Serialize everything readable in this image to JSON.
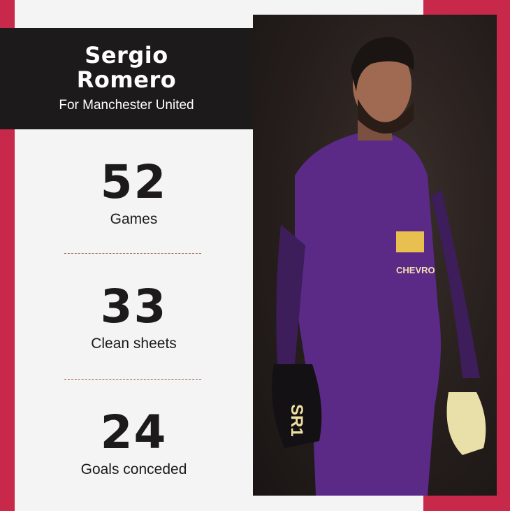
{
  "player": {
    "first_name": "Sergio",
    "last_name": "Romero",
    "subtitle": "For Manchester United"
  },
  "stats": [
    {
      "value": "52",
      "label": "Games"
    },
    {
      "value": "33",
      "label": "Clean sheets"
    },
    {
      "value": "24",
      "label": "Goals conceded"
    }
  ],
  "colors": {
    "accent": "#c8294a",
    "panel": "#f4f4f4",
    "header": "#1c1a1b",
    "divider": "#a0684e"
  },
  "photo": {
    "jersey_text": "CHEVRO",
    "glove_text": "SR1"
  }
}
